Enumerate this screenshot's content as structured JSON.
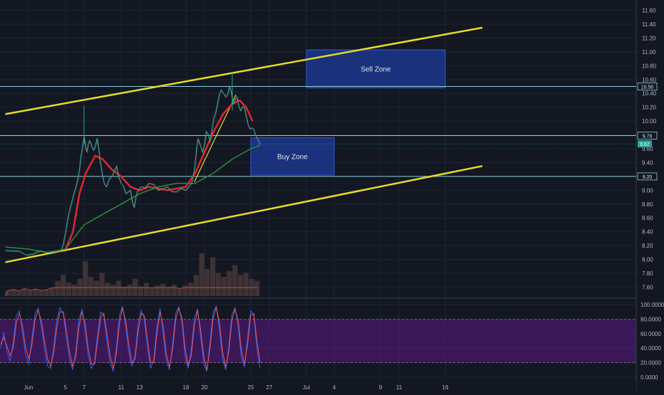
{
  "chart_data": [
    {
      "type": "candlestick",
      "panel": "price",
      "x_tick_labels": [
        "Jun",
        "5",
        "7",
        "11",
        "13",
        "18",
        "20",
        "25",
        "27",
        "Jul",
        "4",
        "9",
        "11",
        "16"
      ],
      "x_tick_days": [
        1,
        5,
        7,
        11,
        13,
        18,
        20,
        25,
        27,
        31,
        34,
        39,
        41,
        46
      ],
      "ylim": [
        7.45,
        11.75
      ],
      "y_ticks": [
        7.6,
        7.8,
        8.0,
        8.2,
        8.4,
        8.6,
        8.8,
        9.0,
        9.2,
        9.4,
        9.6,
        9.8,
        10.0,
        10.2,
        10.4,
        10.6,
        10.8,
        11.0,
        11.2,
        11.4,
        11.6
      ],
      "y_tick_labels": [
        "7.60",
        "7.80",
        "8.00",
        "8.20",
        "8.40",
        "8.60",
        "8.80",
        "9.00",
        "9.20",
        "9.40",
        "9.60",
        "9.80",
        "10.00",
        "10.20",
        "10.40",
        "10.60",
        "10.80",
        "11.00",
        "11.20",
        "11.40",
        "11.60"
      ],
      "price_path": [
        {
          "day": -1.5,
          "price": 8.13
        },
        {
          "day": 0,
          "price": 8.12
        },
        {
          "day": 1.5,
          "price": 8.08
        },
        {
          "day": 3,
          "price": 8.1
        },
        {
          "day": 4.5,
          "price": 8.12
        },
        {
          "day": 5,
          "price": 8.4
        },
        {
          "day": 5.6,
          "price": 8.8
        },
        {
          "day": 6,
          "price": 9.0
        },
        {
          "day": 6.5,
          "price": 9.3
        },
        {
          "day": 6.8,
          "price": 9.6
        },
        {
          "day": 7,
          "price": 9.78
        },
        {
          "day": 7.3,
          "price": 9.55
        },
        {
          "day": 7.6,
          "price": 9.72
        },
        {
          "day": 8,
          "price": 9.58
        },
        {
          "day": 8.4,
          "price": 9.75
        },
        {
          "day": 8.7,
          "price": 9.45
        },
        {
          "day": 9,
          "price": 9.2
        },
        {
          "day": 9.4,
          "price": 9.05
        },
        {
          "day": 10,
          "price": 9.2
        },
        {
          "day": 10.5,
          "price": 9.35
        },
        {
          "day": 11,
          "price": 9.1
        },
        {
          "day": 11.5,
          "price": 8.95
        },
        {
          "day": 12,
          "price": 9.0
        },
        {
          "day": 12.4,
          "price": 8.75
        },
        {
          "day": 12.8,
          "price": 9.0
        },
        {
          "day": 13.2,
          "price": 9.05
        },
        {
          "day": 14,
          "price": 9.1
        },
        {
          "day": 15,
          "price": 9.0
        },
        {
          "day": 16,
          "price": 9.05
        },
        {
          "day": 17,
          "price": 8.98
        },
        {
          "day": 18,
          "price": 9.0
        },
        {
          "day": 18.6,
          "price": 9.1
        },
        {
          "day": 19,
          "price": 9.4
        },
        {
          "day": 19.3,
          "price": 9.75
        },
        {
          "day": 19.8,
          "price": 9.55
        },
        {
          "day": 20.2,
          "price": 9.85
        },
        {
          "day": 20.6,
          "price": 9.7
        },
        {
          "day": 21,
          "price": 10.05
        },
        {
          "day": 21.4,
          "price": 10.25
        },
        {
          "day": 21.8,
          "price": 10.45
        },
        {
          "day": 22.3,
          "price": 10.35
        },
        {
          "day": 22.7,
          "price": 10.5
        },
        {
          "day": 23.1,
          "price": 10.25
        },
        {
          "day": 23.5,
          "price": 10.35
        },
        {
          "day": 23.9,
          "price": 10.15
        },
        {
          "day": 24.3,
          "price": 10.2
        },
        {
          "day": 24.7,
          "price": 9.95
        },
        {
          "day": 25.1,
          "price": 9.9
        },
        {
          "day": 25.5,
          "price": 9.8
        },
        {
          "day": 26,
          "price": 9.67
        }
      ],
      "peak_high": {
        "day": 23.0,
        "price": 10.7
      },
      "june7_high": {
        "day": 7.0,
        "price": 10.22
      },
      "series": [
        {
          "color": "#e0272d",
          "points": [
            {
              "day": 5,
              "price": 8.15
            },
            {
              "day": 5.8,
              "price": 8.4
            },
            {
              "day": 6.5,
              "price": 8.95
            },
            {
              "day": 7.2,
              "price": 9.25
            },
            {
              "day": 8.2,
              "price": 9.5
            },
            {
              "day": 9,
              "price": 9.45
            },
            {
              "day": 10,
              "price": 9.3
            },
            {
              "day": 11,
              "price": 9.2
            },
            {
              "day": 12,
              "price": 9.05
            },
            {
              "day": 13,
              "price": 9.0
            },
            {
              "day": 14,
              "price": 9.05
            },
            {
              "day": 16,
              "price": 9.0
            },
            {
              "day": 18,
              "price": 9.05
            },
            {
              "day": 19,
              "price": 9.25
            },
            {
              "day": 20,
              "price": 9.55
            },
            {
              "day": 21,
              "price": 9.85
            },
            {
              "day": 22,
              "price": 10.1
            },
            {
              "day": 23,
              "price": 10.25
            },
            {
              "day": 23.8,
              "price": 10.3
            },
            {
              "day": 24.5,
              "price": 10.2
            },
            {
              "day": 25.2,
              "price": 10.0
            }
          ]
        },
        {
          "color": "#2e8b3a",
          "points": [
            {
              "day": -1.5,
              "price": 8.18
            },
            {
              "day": 1,
              "price": 8.15
            },
            {
              "day": 3,
              "price": 8.1
            },
            {
              "day": 5,
              "price": 8.15
            },
            {
              "day": 7,
              "price": 8.5
            },
            {
              "day": 9,
              "price": 8.65
            },
            {
              "day": 11,
              "price": 8.8
            },
            {
              "day": 13,
              "price": 8.95
            },
            {
              "day": 15,
              "price": 9.05
            },
            {
              "day": 17,
              "price": 9.1
            },
            {
              "day": 19,
              "price": 9.1
            },
            {
              "day": 21,
              "price": 9.25
            },
            {
              "day": 23,
              "price": 9.45
            },
            {
              "day": 25,
              "price": 9.6
            },
            {
              "day": 26,
              "price": 9.65
            }
          ]
        }
      ],
      "trendlines": [
        {
          "color": "#e6db2a",
          "start": {
            "day": -1.5,
            "price": 10.1
          },
          "end": {
            "day": 50,
            "price": 11.35
          }
        },
        {
          "color": "#e6db2a",
          "start": {
            "day": -1.5,
            "price": 7.96
          },
          "end": {
            "day": 50,
            "price": 9.35
          }
        },
        {
          "color": "#e6db2a",
          "start": {
            "day": 18.9,
            "price": 9.12
          },
          "end": {
            "day": 23.4,
            "price": 10.38
          }
        }
      ],
      "horizontal_levels": [
        {
          "price": 10.5,
          "label": "10.50"
        },
        {
          "price": 9.79,
          "label": "9.79"
        },
        {
          "price": 9.2,
          "label": "9.20"
        }
      ],
      "current_price_label": "9.67",
      "zones": [
        {
          "label": "Sell Zone",
          "day_start": 31,
          "day_end": 46,
          "price_top": 11.03,
          "price_bottom": 10.48
        },
        {
          "label": "Buy Zone",
          "day_start": 25,
          "day_end": 34,
          "price_top": 9.76,
          "price_bottom": 9.22
        }
      ],
      "volume_levels": [
        0.05,
        0.08,
        0.04,
        0.1,
        0.06,
        0.09,
        0.05,
        0.07,
        0.12,
        0.3,
        0.45,
        0.25,
        0.2,
        0.35,
        0.8,
        0.4,
        0.3,
        0.5,
        0.25,
        0.2,
        0.3,
        0.15,
        0.2,
        0.35,
        0.15,
        0.25,
        0.12,
        0.18,
        0.22,
        0.15,
        0.2,
        0.1,
        0.18,
        0.25,
        0.45,
        1.0,
        0.6,
        0.9,
        0.5,
        0.4,
        0.55,
        0.7,
        0.45,
        0.5,
        0.35,
        0.3
      ]
    },
    {
      "type": "line",
      "panel": "oscillator",
      "ylim": [
        -5,
        108
      ],
      "y_ticks": [
        0,
        20,
        40,
        60,
        80,
        100
      ],
      "y_tick_labels": [
        "0.0000",
        "20.0000",
        "40.0000",
        "60.0000",
        "80.0000",
        "100.0000"
      ],
      "band": [
        20,
        80
      ],
      "series": [
        {
          "color": "#2962ff",
          "values": [
            40,
            62,
            35,
            22,
            48,
            85,
            92,
            60,
            30,
            18,
            55,
            88,
            95,
            70,
            40,
            15,
            12,
            45,
            80,
            96,
            88,
            55,
            25,
            10,
            35,
            78,
            94,
            65,
            30,
            12,
            20,
            60,
            90,
            85,
            50,
            20,
            8,
            40,
            85,
            98,
            70,
            35,
            15,
            30,
            75,
            92,
            80,
            40,
            12,
            25,
            70,
            95,
            60,
            22,
            10,
            45,
            88,
            97,
            75,
            30,
            12,
            38,
            82,
            94,
            55,
            18,
            8,
            50,
            90,
            98,
            65,
            25,
            10,
            42,
            86,
            96,
            70,
            28,
            14,
            55,
            92,
            85,
            40,
            12
          ]
        },
        {
          "color": "#ef5350",
          "values": [
            45,
            55,
            42,
            30,
            40,
            75,
            88,
            70,
            40,
            25,
            45,
            80,
            92,
            78,
            50,
            25,
            15,
            35,
            70,
            90,
            90,
            65,
            35,
            15,
            28,
            68,
            90,
            75,
            40,
            18,
            18,
            50,
            82,
            88,
            60,
            30,
            12,
            32,
            75,
            95,
            78,
            45,
            20,
            25,
            65,
            88,
            85,
            50,
            20,
            20,
            60,
            90,
            70,
            32,
            14,
            38,
            80,
            95,
            82,
            40,
            16,
            30,
            72,
            92,
            65,
            28,
            10,
            40,
            82,
            96,
            75,
            35,
            14,
            35,
            78,
            94,
            78,
            38,
            18,
            45,
            85,
            88,
            50,
            20
          ]
        }
      ]
    }
  ]
}
